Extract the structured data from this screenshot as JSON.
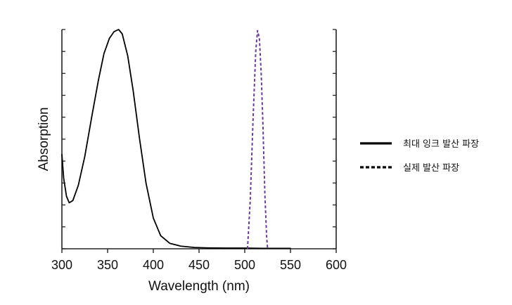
{
  "chart_data": {
    "type": "line",
    "title": "",
    "xlabel": "Wavelength (nm)",
    "ylabel": "Absorption",
    "xlim": [
      300,
      600
    ],
    "ylim": [
      0,
      1
    ],
    "xticks": [
      300,
      350,
      400,
      450,
      500,
      550,
      600
    ],
    "grid": false,
    "legend_position": "right",
    "legend": [
      {
        "label": "최대 잉크 발산 파장",
        "style": "solid",
        "color": "#000000"
      },
      {
        "label": "실제 발산 파장",
        "style": "dashed",
        "color": "#000000"
      }
    ],
    "series": [
      {
        "style": "solid",
        "color": "#000000",
        "points": [
          [
            300,
            0.43
          ],
          [
            302,
            0.32
          ],
          [
            305,
            0.24
          ],
          [
            308,
            0.21
          ],
          [
            312,
            0.22
          ],
          [
            318,
            0.29
          ],
          [
            325,
            0.42
          ],
          [
            333,
            0.61
          ],
          [
            340,
            0.77
          ],
          [
            346,
            0.89
          ],
          [
            352,
            0.96
          ],
          [
            357,
            0.99
          ],
          [
            362,
            1.0
          ],
          [
            366,
            0.98
          ],
          [
            372,
            0.88
          ],
          [
            378,
            0.72
          ],
          [
            385,
            0.5
          ],
          [
            392,
            0.3
          ],
          [
            400,
            0.14
          ],
          [
            408,
            0.06
          ],
          [
            418,
            0.025
          ],
          [
            430,
            0.012
          ],
          [
            445,
            0.006
          ],
          [
            460,
            0.004
          ],
          [
            480,
            0.003
          ],
          [
            500,
            0.003
          ],
          [
            520,
            0.002
          ],
          [
            550,
            0.002
          ]
        ]
      },
      {
        "style": "dashed",
        "color": "#6a3a98",
        "points": [
          [
            503,
            0.0
          ],
          [
            506,
            0.22
          ],
          [
            509,
            0.58
          ],
          [
            512,
            0.9
          ],
          [
            514,
            0.995
          ],
          [
            516,
            0.96
          ],
          [
            518,
            0.8
          ],
          [
            520,
            0.55
          ],
          [
            522,
            0.25
          ],
          [
            524,
            0.05
          ],
          [
            525,
            0.0
          ]
        ]
      }
    ]
  }
}
